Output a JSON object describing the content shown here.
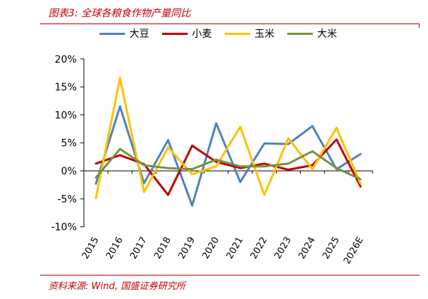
{
  "header": {
    "title": "图表3:  全球各粮食作物产量同比"
  },
  "footer": {
    "source": "资料来源:  Wind,  国盛证券研究所"
  },
  "colors": {
    "accent": "#c00000",
    "axis": "#000000",
    "dadou": "#4f81bd",
    "xiaomai": "#c00000",
    "yumi": "#ffc000",
    "dami": "#77933c"
  },
  "chart_data": {
    "type": "line",
    "categories": [
      "2015",
      "2016",
      "2017",
      "2018",
      "2019",
      "2020",
      "2021",
      "2022",
      "2023",
      "2024",
      "2025",
      "2026E"
    ],
    "ylim": [
      -10,
      20
    ],
    "yticks": [
      -10,
      -5,
      0,
      5,
      10,
      15,
      20
    ],
    "ytick_labels": [
      "-10%",
      "-5%",
      "0%",
      "5%",
      "10%",
      "15%",
      "20%"
    ],
    "grid": false,
    "legend": "top",
    "series": [
      {
        "name": "大豆",
        "color": "#4f81bd",
        "values": [
          -2.3,
          11.5,
          -2.2,
          5.5,
          -6.2,
          8.5,
          -2.0,
          4.9,
          4.8,
          8.0,
          0.3,
          3.0
        ]
      },
      {
        "name": "小麦",
        "color": "#c00000",
        "values": [
          1.3,
          2.8,
          1.2,
          -4.3,
          4.5,
          1.6,
          0.5,
          1.3,
          0.2,
          1.0,
          5.6,
          -2.8
        ]
      },
      {
        "name": "玉米",
        "color": "#ffc000",
        "values": [
          -4.9,
          16.6,
          -3.8,
          4.2,
          -0.6,
          0.8,
          7.9,
          -4.3,
          5.8,
          0.3,
          7.7,
          -2.3
        ]
      },
      {
        "name": "大米",
        "color": "#77933c",
        "values": [
          -1.2,
          3.9,
          1.0,
          0.5,
          0.3,
          2.0,
          0.8,
          0.8,
          1.3,
          3.5,
          0.5,
          -1.5
        ]
      }
    ]
  }
}
